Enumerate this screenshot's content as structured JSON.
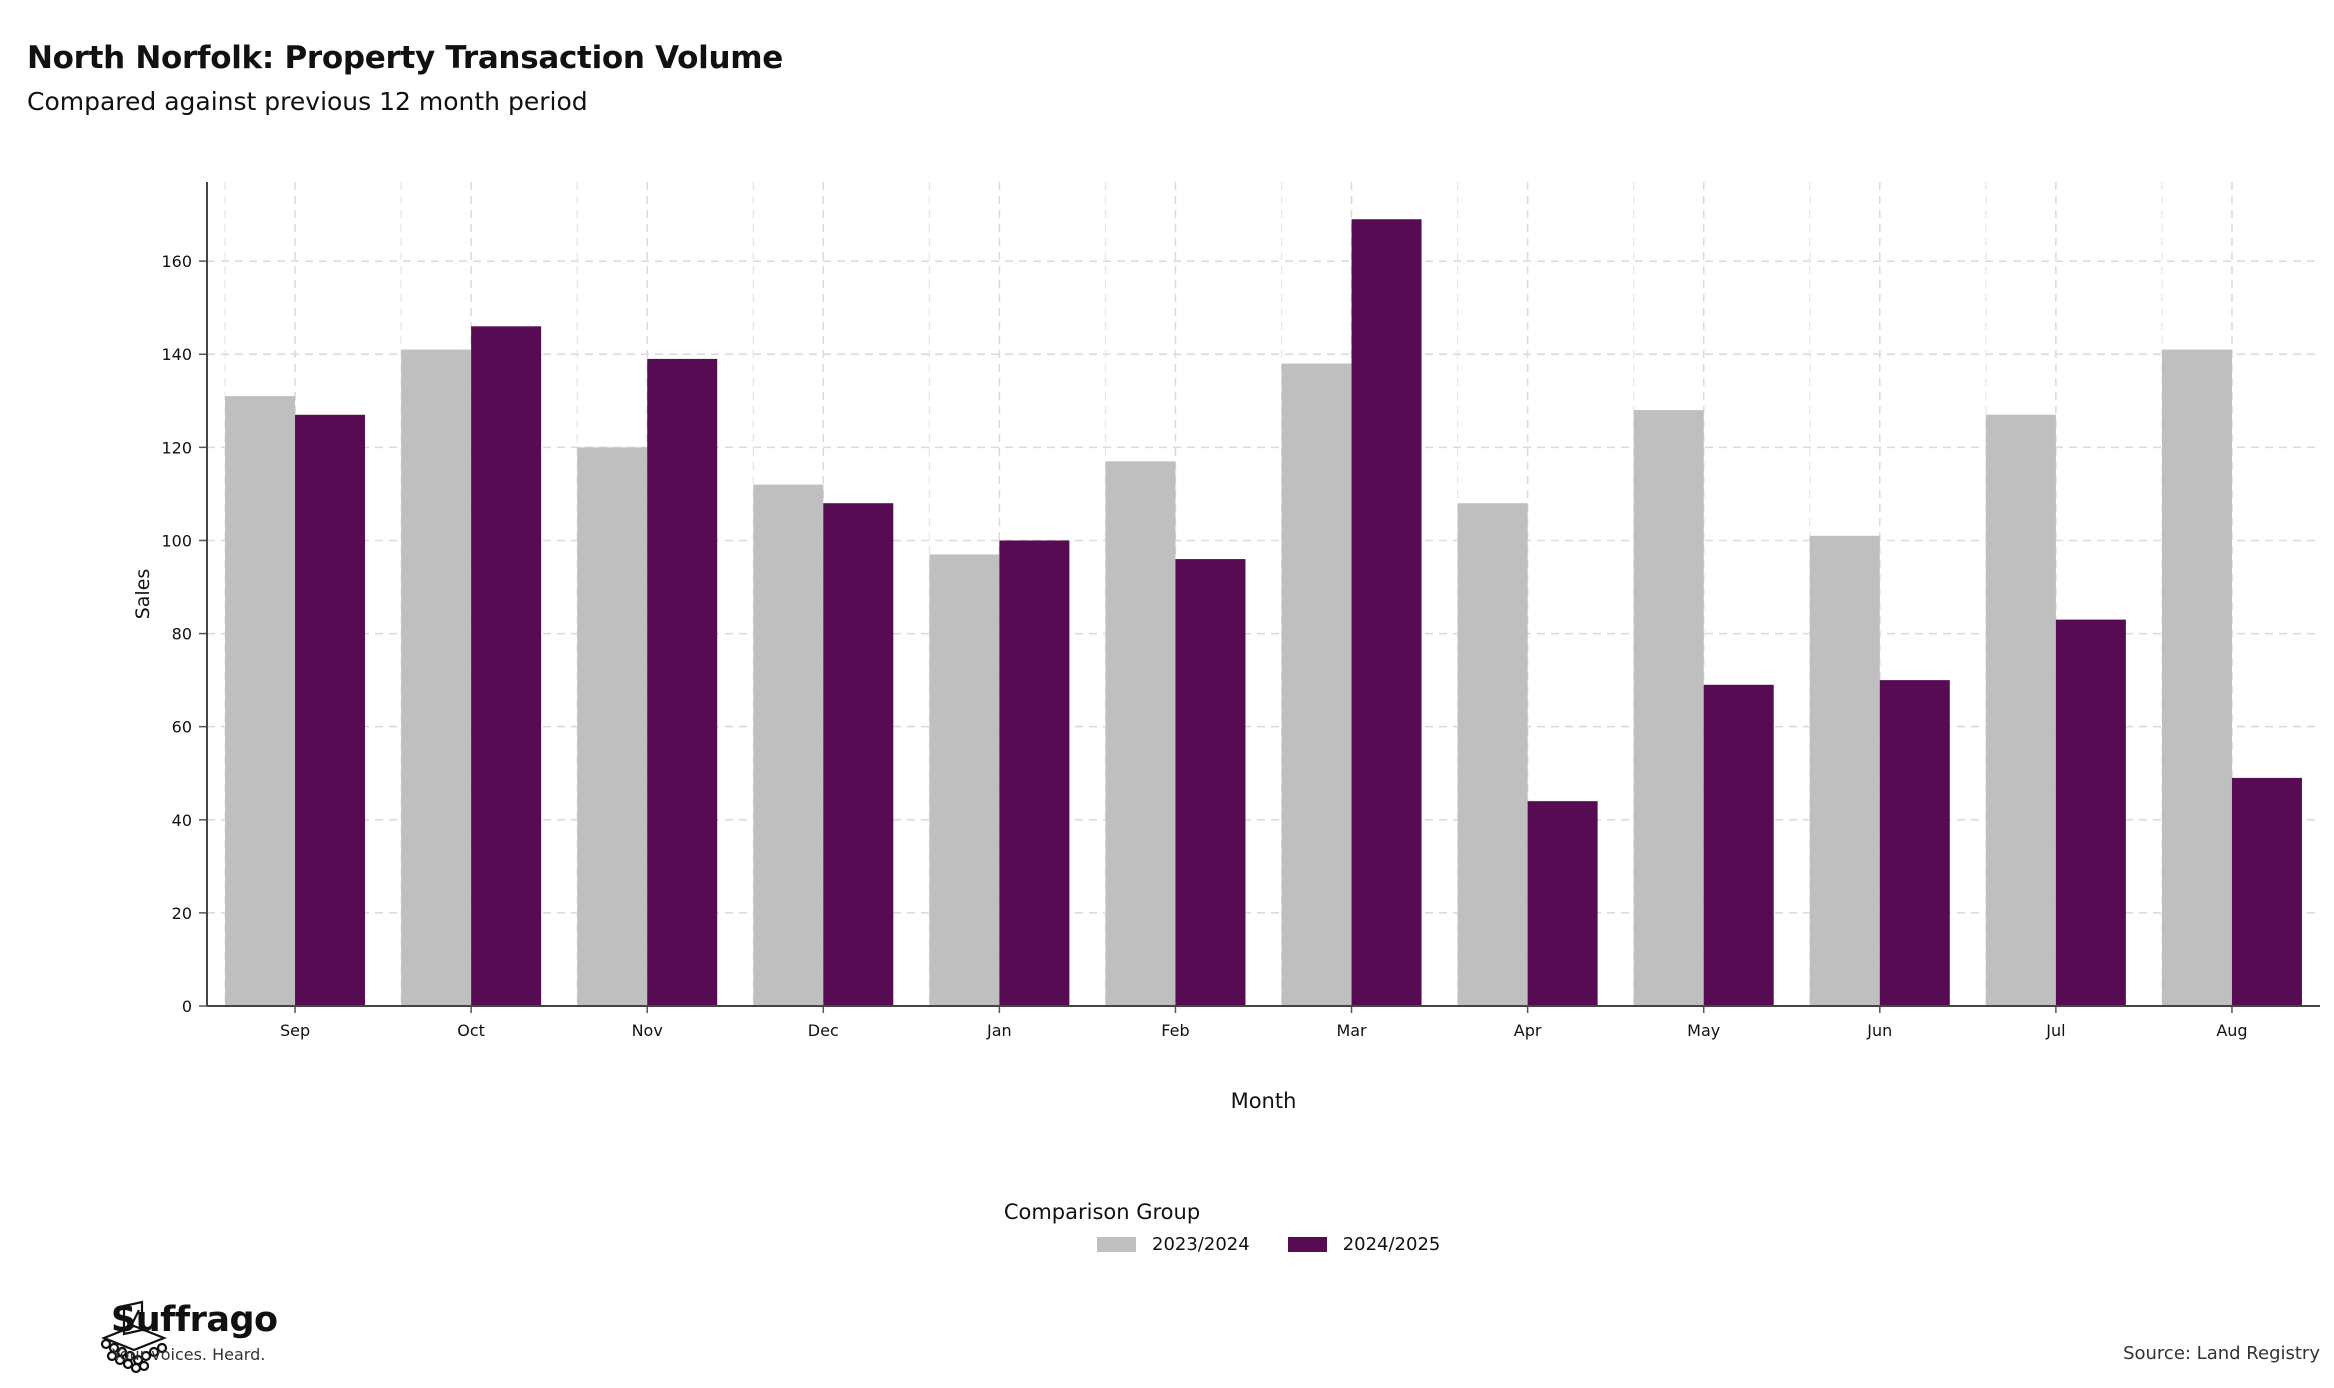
{
  "header": {
    "title": "North Norfolk: Property Transaction Volume",
    "subtitle": "Compared against previous 12 month period"
  },
  "legend": {
    "title": "Comparison Group",
    "items": [
      {
        "label": "2023/2024",
        "color": "#bfbfbf"
      },
      {
        "label": "2024/2025",
        "color": "#560b53"
      }
    ]
  },
  "footer": {
    "brand_name": "Suffrago",
    "brand_tagline": "Your voices. Heard.",
    "source": "Source: Land Registry"
  },
  "chart_data": {
    "type": "bar",
    "xlabel": "Month",
    "ylabel": "Sales",
    "ylim": [
      0,
      177
    ],
    "yticks": [
      0,
      20,
      40,
      60,
      80,
      100,
      120,
      140,
      160
    ],
    "grid": true,
    "legend_position": "bottom",
    "categories": [
      "Sep",
      "Oct",
      "Nov",
      "Dec",
      "Jan",
      "Feb",
      "Mar",
      "Apr",
      "May",
      "Jun",
      "Jul",
      "Aug"
    ],
    "series": [
      {
        "name": "2023/2024",
        "color": "#bfbfbf",
        "values": [
          131,
          141,
          120,
          112,
          97,
          117,
          138,
          108,
          128,
          101,
          127,
          141
        ]
      },
      {
        "name": "2024/2025",
        "color": "#560b53",
        "values": [
          127,
          146,
          139,
          108,
          100,
          96,
          169,
          44,
          69,
          70,
          83,
          49
        ]
      }
    ]
  }
}
